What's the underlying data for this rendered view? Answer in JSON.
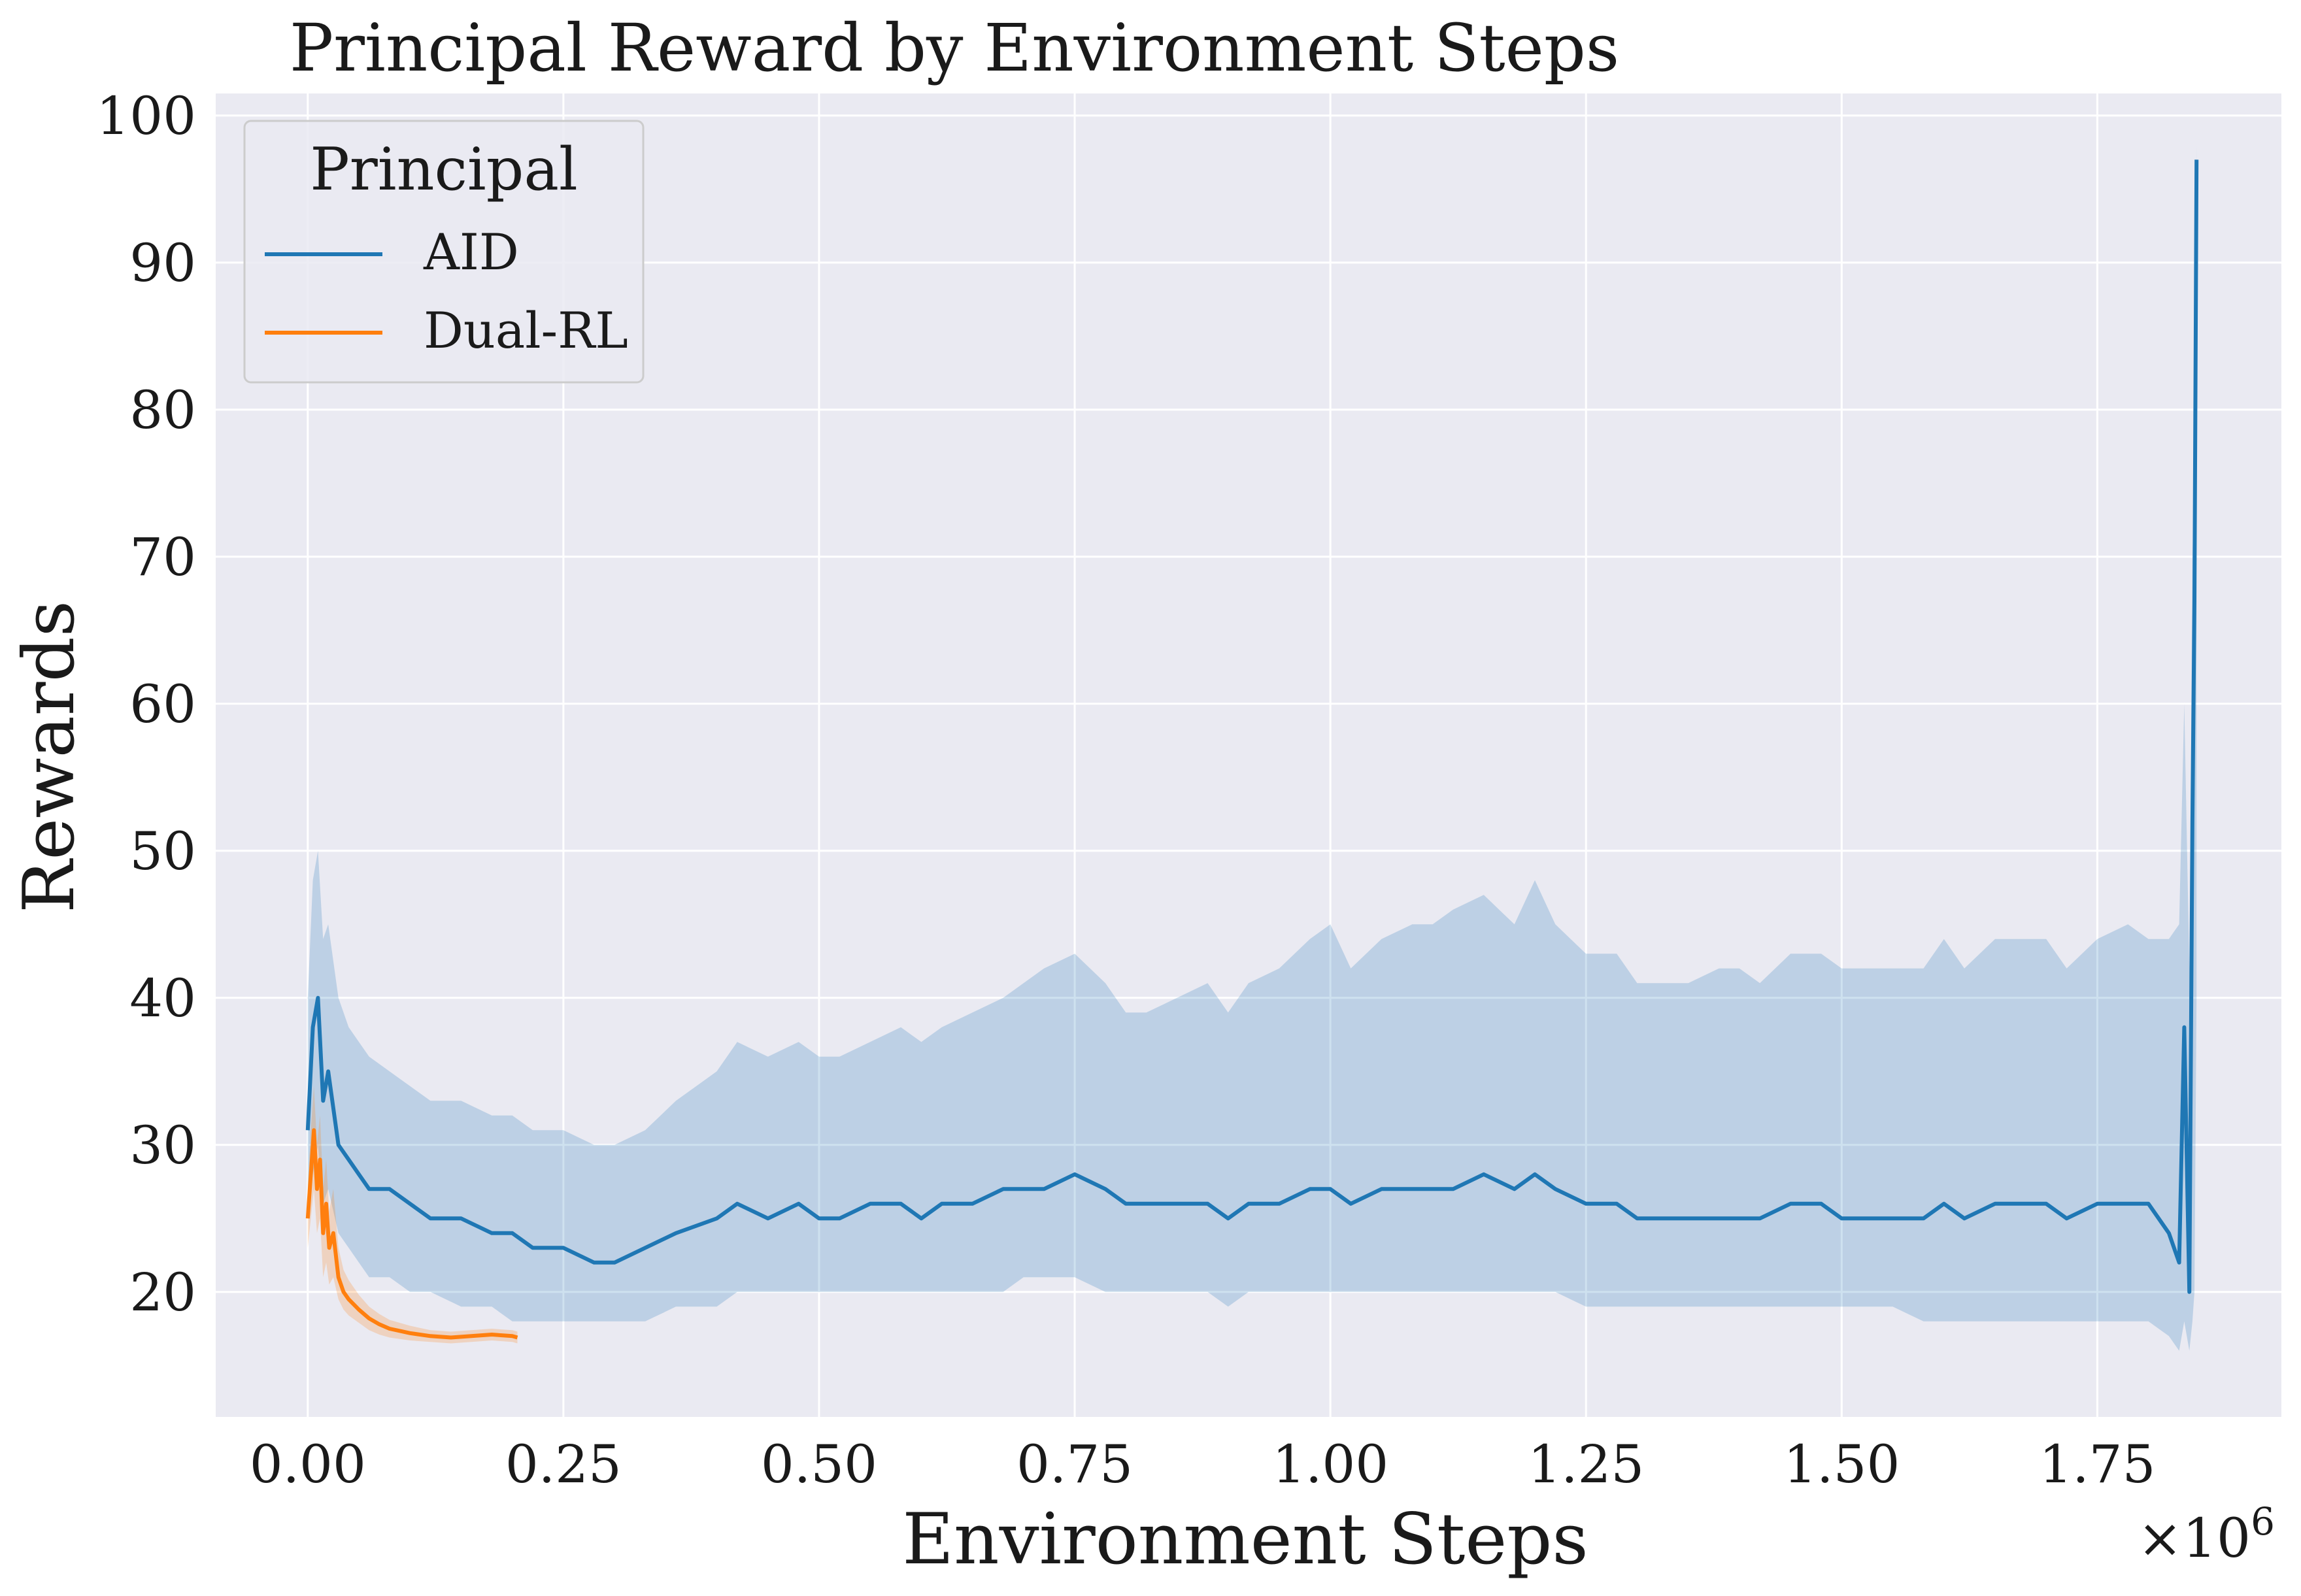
{
  "chart_data": {
    "type": "line",
    "title": "Principal Reward by Environment Steps",
    "xlabel": "Environment Steps",
    "ylabel": "Rewards",
    "x_multiplier_label": "×10",
    "x_multiplier_exponent": "6",
    "xlim": [
      -0.09,
      1.93
    ],
    "ylim": [
      11.5,
      101.5
    ],
    "x_ticks": [
      0.0,
      0.25,
      0.5,
      0.75,
      1.0,
      1.25,
      1.5,
      1.75
    ],
    "x_tick_labels": [
      "0.00",
      "0.25",
      "0.50",
      "0.75",
      "1.00",
      "1.25",
      "1.50",
      "1.75"
    ],
    "y_ticks": [
      20,
      30,
      40,
      50,
      60,
      70,
      80,
      90,
      100
    ],
    "y_tick_labels": [
      "20",
      "30",
      "40",
      "50",
      "60",
      "70",
      "80",
      "90",
      "100"
    ],
    "grid": true,
    "legend": {
      "title": "Principal",
      "placement": "top-left"
    },
    "colors": {
      "background": "#EAEAF2",
      "grid": "#FFFFFF",
      "AID": "#1F77B4",
      "Dual-RL": "#FF7F0E"
    },
    "series": [
      {
        "name": "AID",
        "x": [
          0.0,
          0.005,
          0.01,
          0.015,
          0.02,
          0.03,
          0.04,
          0.05,
          0.06,
          0.08,
          0.1,
          0.12,
          0.15,
          0.18,
          0.2,
          0.22,
          0.25,
          0.28,
          0.3,
          0.33,
          0.36,
          0.4,
          0.42,
          0.45,
          0.48,
          0.5,
          0.52,
          0.55,
          0.58,
          0.6,
          0.62,
          0.65,
          0.68,
          0.7,
          0.72,
          0.75,
          0.78,
          0.8,
          0.82,
          0.85,
          0.88,
          0.9,
          0.92,
          0.95,
          0.98,
          1.0,
          1.02,
          1.05,
          1.08,
          1.1,
          1.12,
          1.15,
          1.18,
          1.2,
          1.22,
          1.25,
          1.28,
          1.3,
          1.32,
          1.35,
          1.38,
          1.4,
          1.42,
          1.45,
          1.48,
          1.5,
          1.52,
          1.55,
          1.58,
          1.6,
          1.62,
          1.65,
          1.68,
          1.7,
          1.72,
          1.75,
          1.78,
          1.8,
          1.82,
          1.83,
          1.835,
          1.84,
          1.843,
          1.845,
          1.847
        ],
        "y": [
          31,
          38,
          40,
          33,
          35,
          30,
          29,
          28,
          27,
          27,
          26,
          25,
          25,
          24,
          24,
          23,
          23,
          22,
          22,
          23,
          24,
          25,
          26,
          25,
          26,
          25,
          25,
          26,
          26,
          25,
          26,
          26,
          27,
          27,
          27,
          28,
          27,
          26,
          26,
          26,
          26,
          25,
          26,
          26,
          27,
          27,
          26,
          27,
          27,
          27,
          27,
          28,
          27,
          28,
          27,
          26,
          26,
          25,
          25,
          25,
          25,
          25,
          25,
          26,
          26,
          25,
          25,
          25,
          25,
          26,
          25,
          26,
          26,
          26,
          25,
          26,
          26,
          26,
          24,
          22,
          38,
          20,
          52,
          67,
          97
        ],
        "band_lower": [
          25,
          28,
          30,
          26,
          27,
          24,
          23,
          22,
          21,
          21,
          20,
          20,
          19,
          19,
          18,
          18,
          18,
          18,
          18,
          18,
          19,
          19,
          20,
          20,
          20,
          20,
          20,
          20,
          20,
          20,
          20,
          20,
          20,
          21,
          21,
          21,
          20,
          20,
          20,
          20,
          20,
          19,
          20,
          20,
          20,
          20,
          20,
          20,
          20,
          20,
          20,
          20,
          20,
          20,
          20,
          19,
          19,
          19,
          19,
          19,
          19,
          19,
          19,
          19,
          19,
          19,
          19,
          19,
          18,
          18,
          18,
          18,
          18,
          18,
          18,
          18,
          18,
          18,
          17,
          16,
          18,
          16,
          18,
          20,
          40
        ],
        "band_upper": [
          40,
          48,
          50,
          44,
          45,
          40,
          38,
          37,
          36,
          35,
          34,
          33,
          33,
          32,
          32,
          31,
          31,
          30,
          30,
          31,
          33,
          35,
          37,
          36,
          37,
          36,
          36,
          37,
          38,
          37,
          38,
          39,
          40,
          41,
          42,
          43,
          41,
          39,
          39,
          40,
          41,
          39,
          41,
          42,
          44,
          45,
          42,
          44,
          45,
          45,
          46,
          47,
          45,
          48,
          45,
          43,
          43,
          41,
          41,
          41,
          42,
          42,
          41,
          43,
          43,
          42,
          42,
          42,
          42,
          44,
          42,
          44,
          44,
          44,
          42,
          44,
          45,
          44,
          44,
          45,
          60,
          42,
          70,
          75,
          98
        ]
      },
      {
        "name": "Dual-RL",
        "x": [
          0.0,
          0.003,
          0.006,
          0.009,
          0.012,
          0.015,
          0.018,
          0.021,
          0.025,
          0.03,
          0.035,
          0.04,
          0.05,
          0.06,
          0.07,
          0.08,
          0.1,
          0.12,
          0.14,
          0.16,
          0.18,
          0.2,
          0.205
        ],
        "y": [
          25,
          28,
          31,
          27,
          29,
          24,
          26,
          23,
          24,
          21,
          20,
          19.5,
          18.8,
          18.2,
          17.8,
          17.5,
          17.2,
          17.0,
          16.9,
          17.0,
          17.1,
          17.0,
          16.9
        ],
        "band_lower": [
          23,
          25,
          27,
          24,
          25,
          21,
          22,
          20.5,
          21,
          19.5,
          18.8,
          18.4,
          17.9,
          17.4,
          17.1,
          16.9,
          16.7,
          16.6,
          16.5,
          16.6,
          16.7,
          16.6,
          16.5
        ],
        "band_upper": [
          27,
          31,
          34,
          30,
          32,
          27,
          29,
          25.5,
          27,
          23,
          21.5,
          20.8,
          19.8,
          19.0,
          18.5,
          18.1,
          17.7,
          17.4,
          17.3,
          17.4,
          17.5,
          17.4,
          17.3
        ]
      }
    ]
  }
}
